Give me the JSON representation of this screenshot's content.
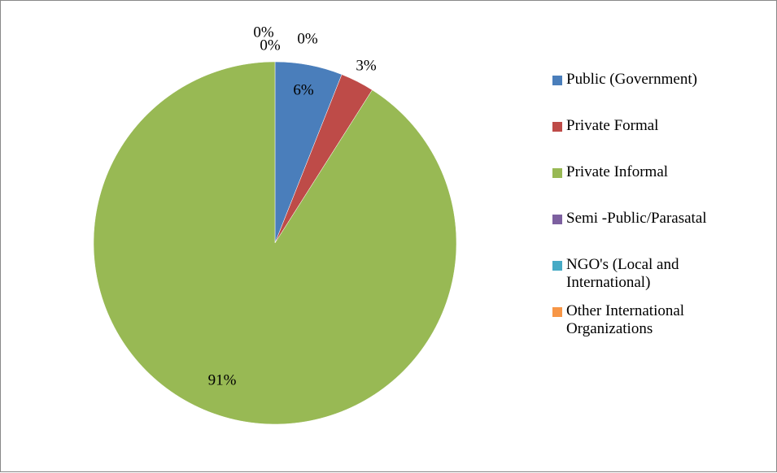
{
  "chart_data": {
    "type": "pie",
    "categories": [
      "Public (Government)",
      "Private Formal",
      "Private Informal",
      "Semi -Public/Parasatal",
      "NGO's (Local and International)",
      "Other International Organizations"
    ],
    "values": [
      6,
      3,
      91,
      0,
      0,
      0
    ],
    "value_labels": [
      "6%",
      "3%",
      "91%",
      "0%",
      "0%",
      "0%"
    ],
    "colors": [
      "#4a7ebb",
      "#be4b48",
      "#98b954",
      "#7d60a0",
      "#46aac5",
      "#f79646"
    ],
    "legend": "right"
  }
}
